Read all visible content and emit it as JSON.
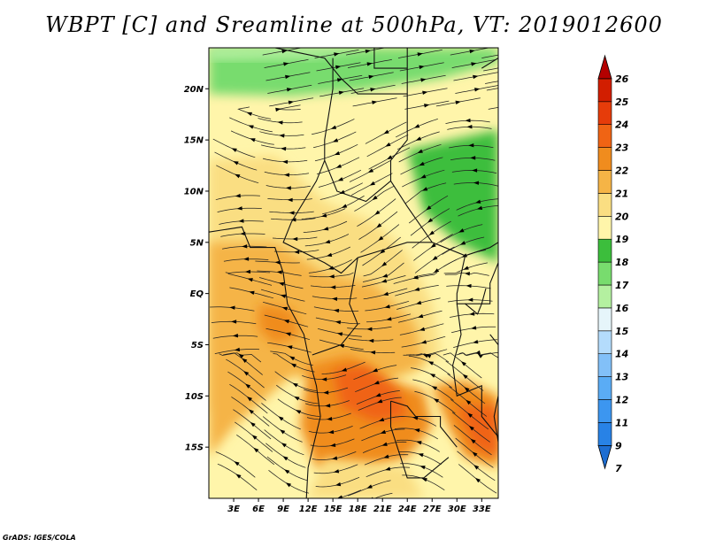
{
  "title": "WBPT [C] and Sreamline at 500hPa, VT: 2019012600",
  "credit": "GrADS: IGES/COLA",
  "map": {
    "lon_range": [
      0,
      35
    ],
    "lat_range": [
      -20,
      24
    ],
    "lat_ticks": [
      {
        "value": 20,
        "label": "20N"
      },
      {
        "value": 15,
        "label": "15N"
      },
      {
        "value": 10,
        "label": "10N"
      },
      {
        "value": 5,
        "label": "5N"
      },
      {
        "value": 0,
        "label": "EQ"
      },
      {
        "value": -5,
        "label": "5S"
      },
      {
        "value": -10,
        "label": "10S"
      },
      {
        "value": -15,
        "label": "15S"
      }
    ],
    "lon_ticks": [
      {
        "value": 3,
        "label": "3E"
      },
      {
        "value": 6,
        "label": "6E"
      },
      {
        "value": 9,
        "label": "9E"
      },
      {
        "value": 12,
        "label": "12E"
      },
      {
        "value": 15,
        "label": "15E"
      },
      {
        "value": 18,
        "label": "18E"
      },
      {
        "value": 21,
        "label": "21E"
      },
      {
        "value": 24,
        "label": "24E"
      },
      {
        "value": 27,
        "label": "27E"
      },
      {
        "value": 30,
        "label": "30E"
      },
      {
        "value": 33,
        "label": "33E"
      }
    ]
  },
  "colorbar": {
    "levels": [
      "7",
      "9",
      "11",
      "12",
      "13",
      "14",
      "15",
      "16",
      "17",
      "18",
      "19",
      "20",
      "21",
      "22",
      "23",
      "24",
      "25",
      "26"
    ],
    "colors": [
      "#1e6ed2",
      "#2882e6",
      "#3c96f0",
      "#5aacf5",
      "#82c0f8",
      "#b4dcfc",
      "#e6f5fa",
      "#b4f0a0",
      "#78dc6e",
      "#3cbe3c",
      "#fff5aa",
      "#fade82",
      "#f5b446",
      "#f08c1e",
      "#f06414",
      "#e63c0a",
      "#d21e00",
      "#b40000"
    ]
  },
  "field": {
    "color_bands_degC": [
      {
        "region": "far north (lat > 20N)",
        "value": 17
      },
      {
        "region": "north (12N-20N)",
        "value": 19
      },
      {
        "region": "central (3N-12N)",
        "value": 20
      },
      {
        "region": "equatorial (5S-3N)",
        "value": 21
      },
      {
        "region": "south-central (8S-16S, 14E-26E)",
        "value": 23
      },
      {
        "region": "southeast (10S-17S, 28E-35E)",
        "value": 23
      }
    ]
  }
}
